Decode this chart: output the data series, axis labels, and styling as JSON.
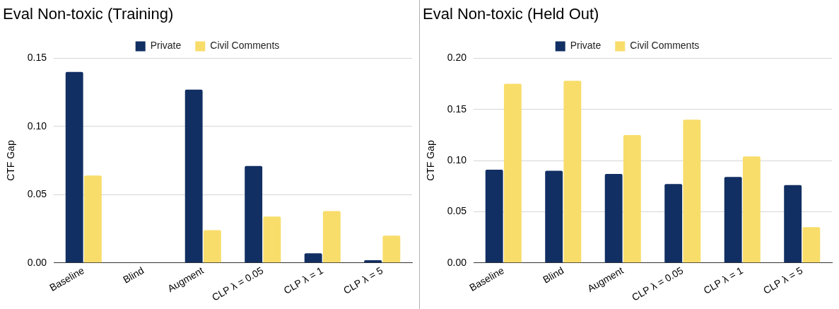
{
  "chart_data": [
    {
      "type": "bar",
      "title": "Eval Non-toxic (Training)",
      "ylabel": "CTF Gap",
      "categories": [
        "Baseline",
        "Blind",
        "Augment",
        "CLP λ = 0.05",
        "CLP λ = 1",
        "CLP λ = 5"
      ],
      "series": [
        {
          "name": "Private",
          "color": "#112f63",
          "values": [
            0.14,
            0,
            0.127,
            0.071,
            0.007,
            0.002
          ]
        },
        {
          "name": "Civil Comments",
          "color": "#f8dd6b",
          "values": [
            0.064,
            0,
            0.024,
            0.034,
            0.038,
            0.02
          ]
        }
      ],
      "ylim": [
        0,
        0.15
      ],
      "yticks": [
        {
          "value": 0,
          "label": "0.00"
        },
        {
          "value": 0.05,
          "label": "0.05"
        },
        {
          "value": 0.1,
          "label": "0.10"
        },
        {
          "value": 0.15,
          "label": "0.15"
        }
      ],
      "grid": "y",
      "legend": "top"
    },
    {
      "type": "bar",
      "title": "Eval Non-toxic (Held Out)",
      "ylabel": "CTF Gap",
      "categories": [
        "Baseline",
        "Blind",
        "Augment",
        "CLP λ = 0.05",
        "CLP λ = 1",
        "CLP λ = 5"
      ],
      "series": [
        {
          "name": "Private",
          "color": "#112f63",
          "values": [
            0.091,
            0.09,
            0.087,
            0.077,
            0.084,
            0.076
          ]
        },
        {
          "name": "Civil Comments",
          "color": "#f8dd6b",
          "values": [
            0.175,
            0.178,
            0.125,
            0.14,
            0.104,
            0.035
          ]
        }
      ],
      "ylim": [
        0,
        0.2
      ],
      "yticks": [
        {
          "value": 0,
          "label": "0.00"
        },
        {
          "value": 0.05,
          "label": "0.05"
        },
        {
          "value": 0.1,
          "label": "0.10"
        },
        {
          "value": 0.15,
          "label": "0.15"
        },
        {
          "value": 0.2,
          "label": "0.20"
        }
      ],
      "grid": "y",
      "legend": "top"
    }
  ]
}
